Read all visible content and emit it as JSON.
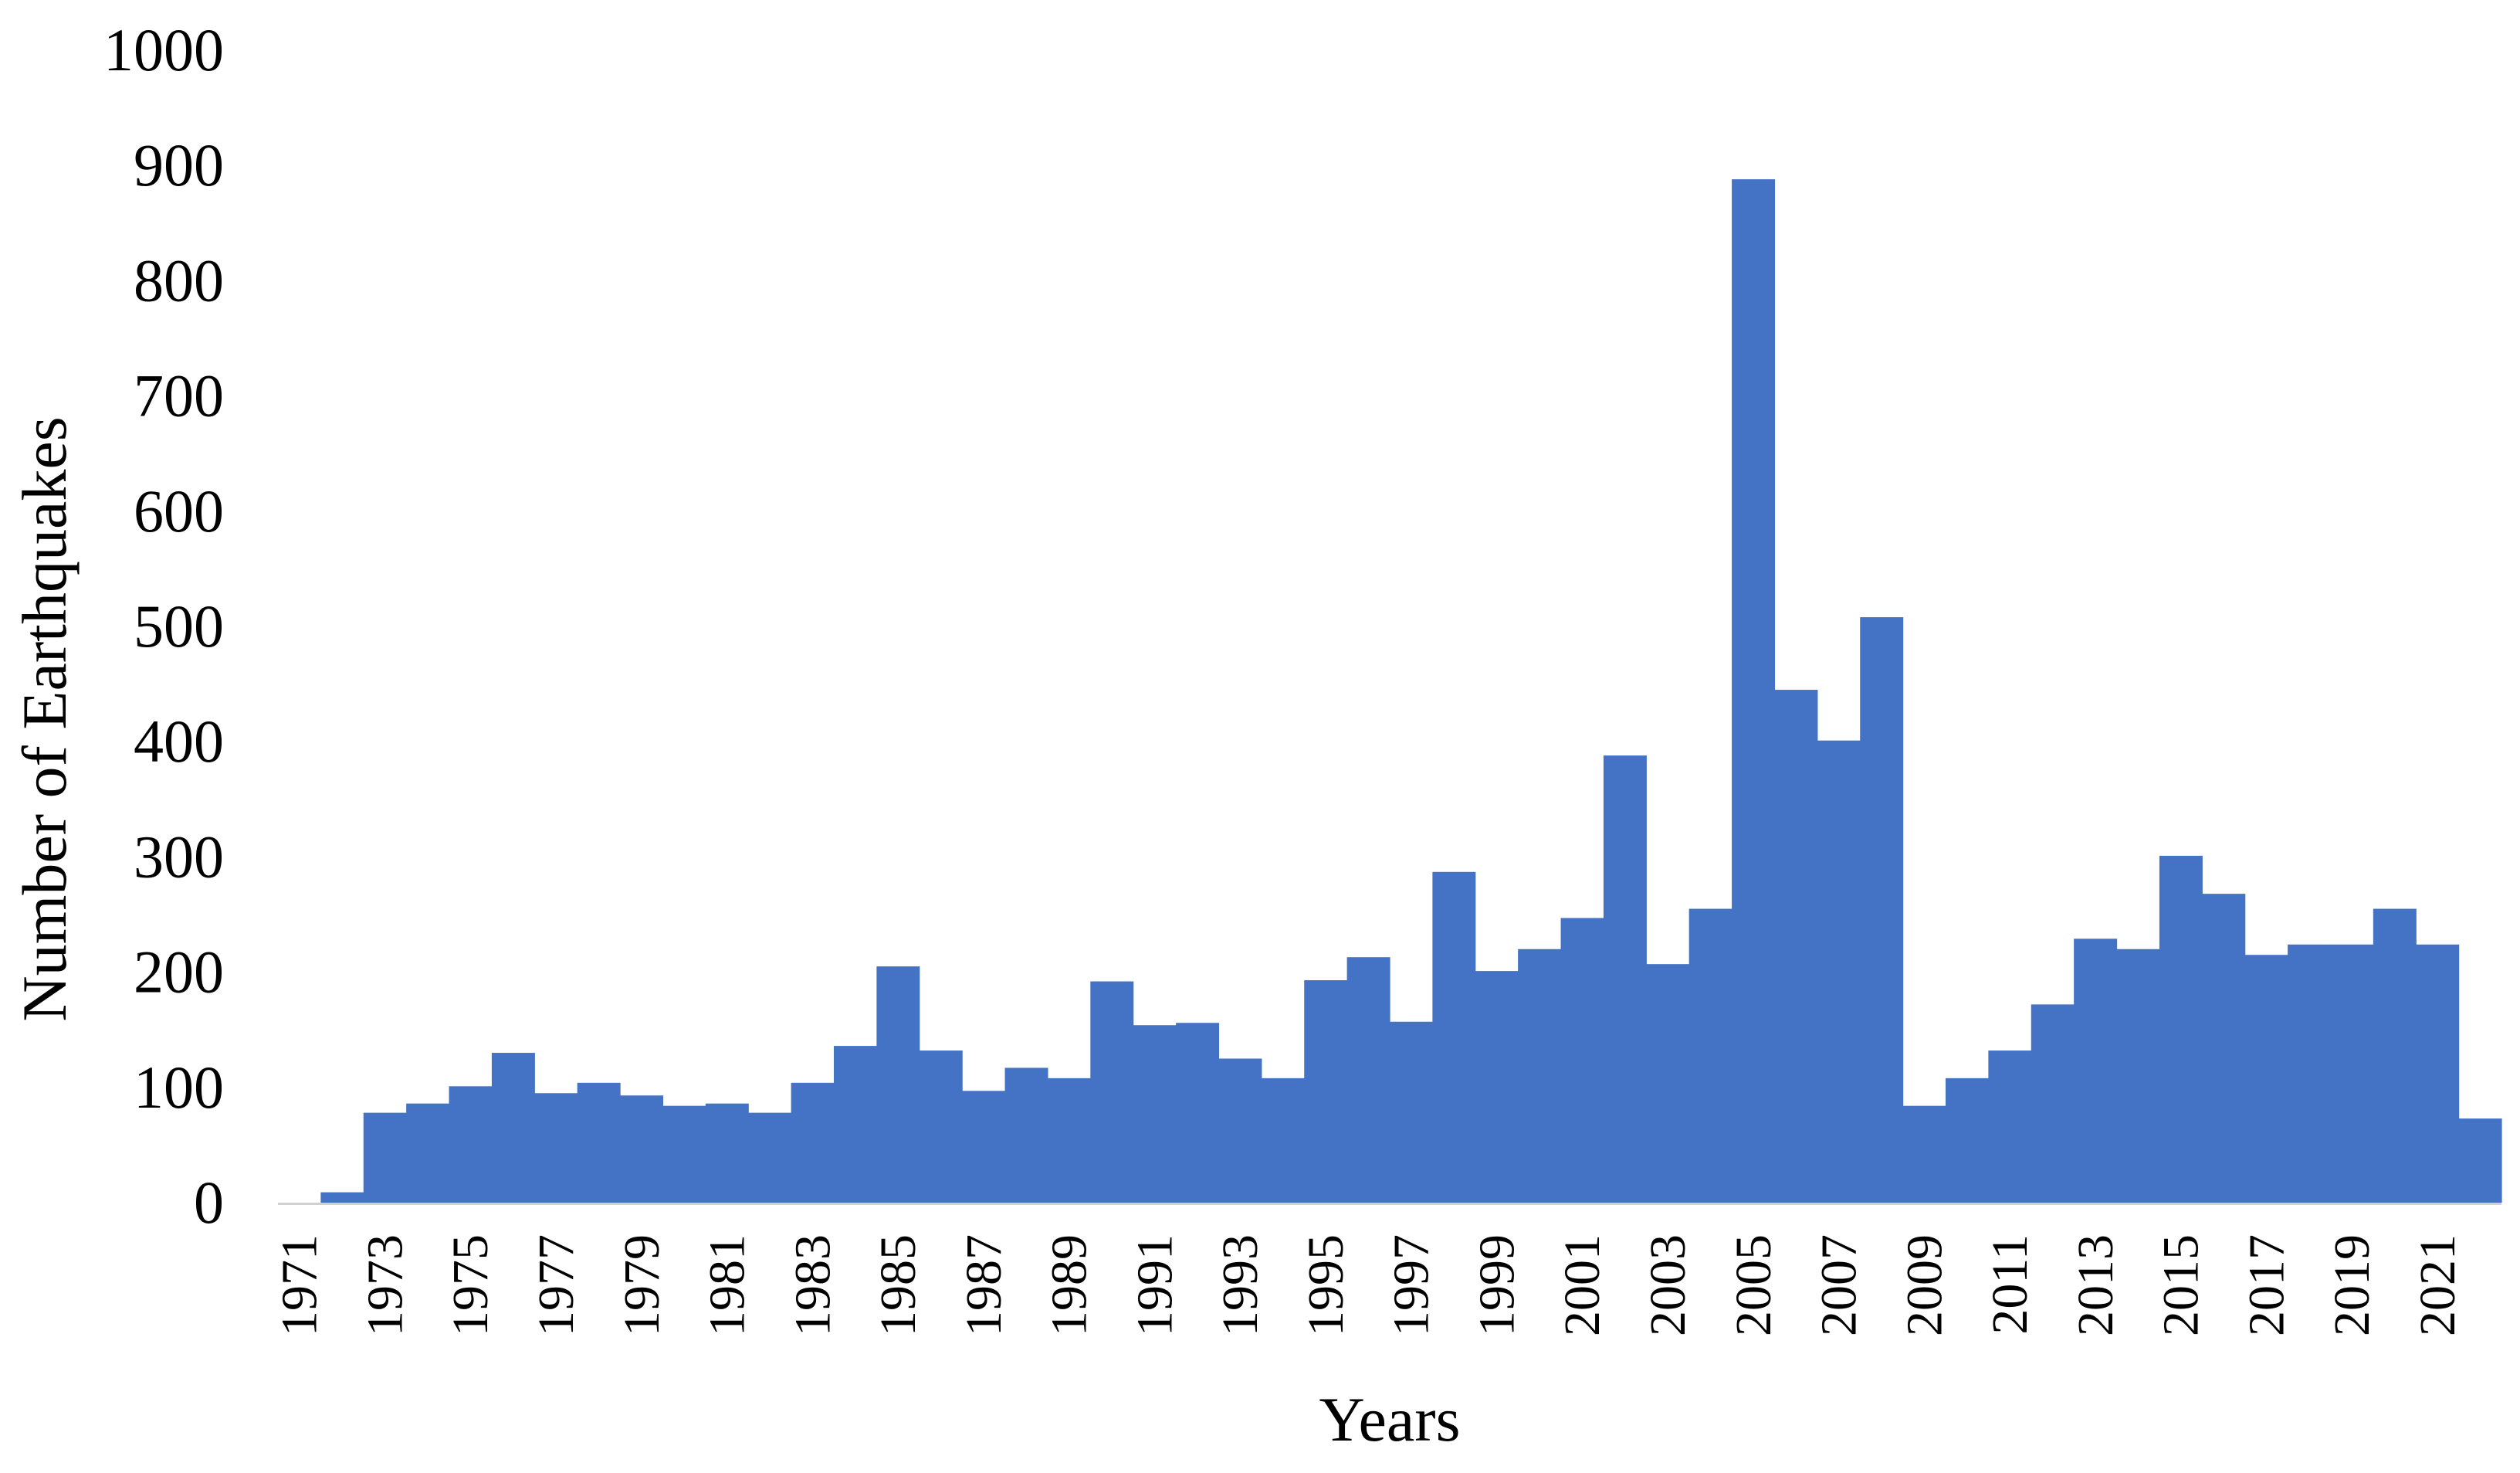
{
  "chart_data": {
    "type": "bar",
    "xlabel": "Years",
    "ylabel": "Number of Earthquakes",
    "ylim": [
      0,
      1000
    ],
    "yticks": [
      0,
      100,
      200,
      300,
      400,
      500,
      600,
      700,
      800,
      900,
      1000
    ],
    "grid": false,
    "legend": "none",
    "color": "#4472C4",
    "categories": [
      "1971",
      "1972",
      "1973",
      "1974",
      "1975",
      "1976",
      "1977",
      "1978",
      "1979",
      "1980",
      "1981",
      "1982",
      "1983",
      "1984",
      "1985",
      "1986",
      "1987",
      "1988",
      "1989",
      "1990",
      "1991",
      "1992",
      "1993",
      "1994",
      "1995",
      "1996",
      "1997",
      "1998",
      "1999",
      "2000",
      "2001",
      "2002",
      "2003",
      "2004",
      "2005",
      "2006",
      "2007",
      "2008",
      "2009",
      "2010",
      "2011",
      "2012",
      "2013",
      "2014",
      "2015",
      "2016",
      "2017",
      "2018",
      "2019",
      "2020",
      "2021",
      "2022"
    ],
    "tick_labels": [
      "1971",
      "1973",
      "1975",
      "1977",
      "1979",
      "1981",
      "1983",
      "1985",
      "1987",
      "1989",
      "1991",
      "1993",
      "1995",
      "1997",
      "1999",
      "2001",
      "2003",
      "2005",
      "2007",
      "2009",
      "2011",
      "2013",
      "2015",
      "2017",
      "2019",
      "2021"
    ],
    "values": [
      0,
      9,
      78,
      86,
      101,
      130,
      95,
      104,
      93,
      84,
      86,
      78,
      104,
      136,
      205,
      132,
      97,
      117,
      108,
      192,
      154,
      156,
      125,
      108,
      193,
      213,
      157,
      287,
      201,
      220,
      247,
      388,
      207,
      255,
      888,
      445,
      401,
      508,
      84,
      108,
      132,
      172,
      229,
      220,
      301,
      268,
      215,
      224,
      224,
      255,
      224,
      73
    ]
  }
}
